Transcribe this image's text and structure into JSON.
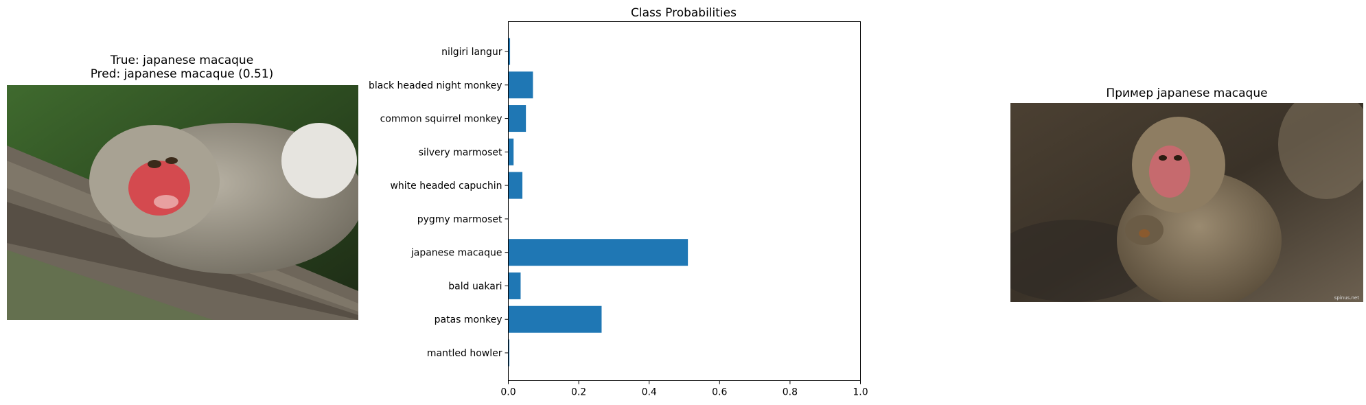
{
  "left_panel": {
    "title_line1": "True: japanese macaque",
    "title_line2": "Pred: japanese macaque (0.51)",
    "image_icon": "monkey-photo"
  },
  "right_panel": {
    "title": "Пример japanese macaque",
    "image_icon": "monkey-photo",
    "watermark": "spinus.net"
  },
  "chart_data": {
    "type": "bar",
    "orientation": "horizontal",
    "title": "Class Probabilities",
    "xlabel": "",
    "ylabel": "",
    "xlim": [
      0,
      1.0
    ],
    "xticks": [
      "0.0",
      "0.2",
      "0.4",
      "0.6",
      "0.8",
      "1.0"
    ],
    "categories": [
      "nilgiri langur",
      "black headed night monkey",
      "common squirrel monkey",
      "silvery marmoset",
      "white headed capuchin",
      "pygmy marmoset",
      "japanese macaque",
      "bald uakari",
      "patas monkey",
      "mantled howler"
    ],
    "values": [
      0.005,
      0.07,
      0.05,
      0.015,
      0.04,
      0.001,
      0.51,
      0.035,
      0.265,
      0.003
    ],
    "bar_color": "#1f77b4",
    "grid": false,
    "legend": "none"
  }
}
